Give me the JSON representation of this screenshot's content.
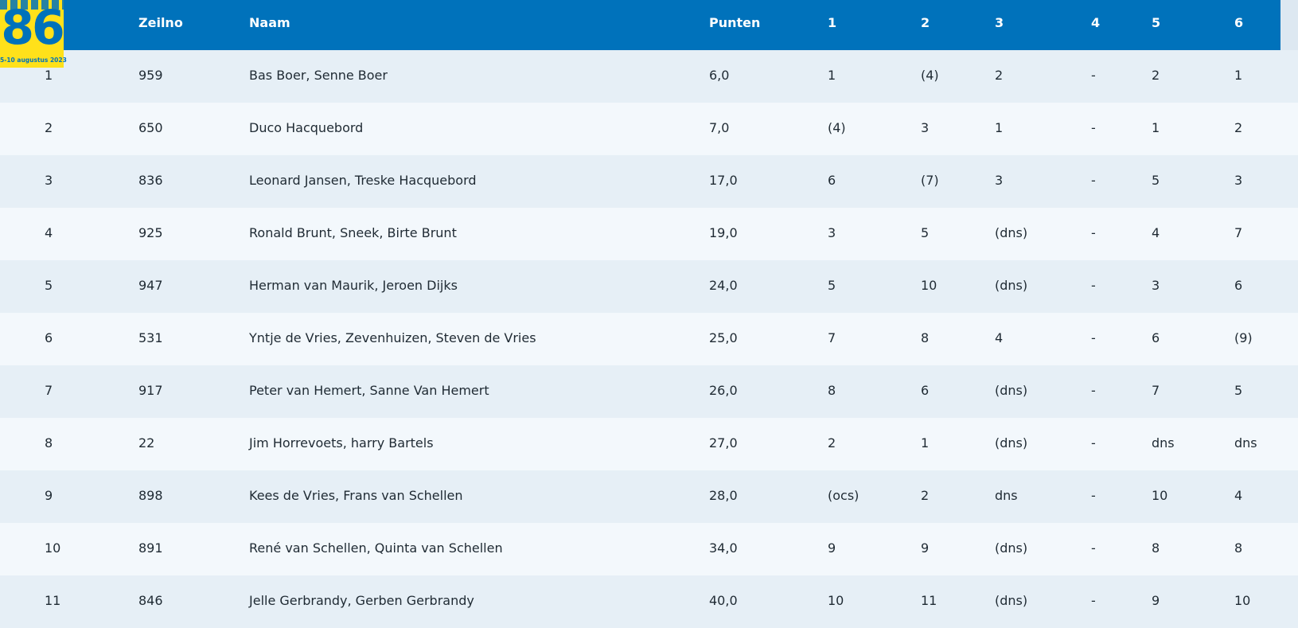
{
  "logo": {
    "number": "86",
    "dates": "5-10 augustus 2023"
  },
  "header": {
    "pos": "",
    "zeilno": "Zeilno",
    "naam": "Naam",
    "punten": "Punten",
    "r1": "1",
    "r2": "2",
    "r3": "3",
    "r4": "4",
    "r5": "5",
    "r6": "6"
  },
  "colors": {
    "header": "#0072bb",
    "row_odd": "#e6eff6",
    "row_even": "#f3f8fc",
    "logo_bg": "#ffe11a"
  },
  "rows": [
    {
      "pos": "1",
      "zeilno": "959",
      "naam": "Bas Boer, Senne Boer",
      "punten": "6,0",
      "r1": "1",
      "r2": "(4)",
      "r3": "2",
      "r4": "-",
      "r5": "2",
      "r6": "1"
    },
    {
      "pos": "2",
      "zeilno": "650",
      "naam": "Duco Hacquebord",
      "punten": "7,0",
      "r1": "(4)",
      "r2": "3",
      "r3": "1",
      "r4": "-",
      "r5": "1",
      "r6": "2"
    },
    {
      "pos": "3",
      "zeilno": "836",
      "naam": "Leonard Jansen, Treske Hacquebord",
      "punten": "17,0",
      "r1": "6",
      "r2": "(7)",
      "r3": "3",
      "r4": "-",
      "r5": "5",
      "r6": "3"
    },
    {
      "pos": "4",
      "zeilno": "925",
      "naam": "Ronald Brunt, Sneek, Birte Brunt",
      "punten": "19,0",
      "r1": "3",
      "r2": "5",
      "r3": "(dns)",
      "r4": "-",
      "r5": "4",
      "r6": "7"
    },
    {
      "pos": "5",
      "zeilno": "947",
      "naam": "Herman van Maurik, Jeroen Dijks",
      "punten": "24,0",
      "r1": "5",
      "r2": "10",
      "r3": "(dns)",
      "r4": "-",
      "r5": "3",
      "r6": "6"
    },
    {
      "pos": "6",
      "zeilno": "531",
      "naam": "Yntje de Vries, Zevenhuizen, Steven de Vries",
      "punten": "25,0",
      "r1": "7",
      "r2": "8",
      "r3": "4",
      "r4": "-",
      "r5": "6",
      "r6": "(9)"
    },
    {
      "pos": "7",
      "zeilno": "917",
      "naam": "Peter van Hemert, Sanne Van Hemert",
      "punten": "26,0",
      "r1": "8",
      "r2": "6",
      "r3": "(dns)",
      "r4": "-",
      "r5": "7",
      "r6": "5"
    },
    {
      "pos": "8",
      "zeilno": "22",
      "naam": "Jim Horrevoets, harry Bartels",
      "punten": "27,0",
      "r1": "2",
      "r2": "1",
      "r3": "(dns)",
      "r4": "-",
      "r5": "dns",
      "r6": "dns"
    },
    {
      "pos": "9",
      "zeilno": "898",
      "naam": "Kees de Vries, Frans van Schellen",
      "punten": "28,0",
      "r1": "(ocs)",
      "r2": "2",
      "r3": "dns",
      "r4": "-",
      "r5": "10",
      "r6": "4"
    },
    {
      "pos": "10",
      "zeilno": "891",
      "naam": "René van Schellen, Quinta van Schellen",
      "punten": "34,0",
      "r1": "9",
      "r2": "9",
      "r3": "(dns)",
      "r4": "-",
      "r5": "8",
      "r6": "8"
    },
    {
      "pos": "11",
      "zeilno": "846",
      "naam": "Jelle Gerbrandy, Gerben Gerbrandy",
      "punten": "40,0",
      "r1": "10",
      "r2": "11",
      "r3": "(dns)",
      "r4": "-",
      "r5": "9",
      "r6": "10"
    }
  ]
}
